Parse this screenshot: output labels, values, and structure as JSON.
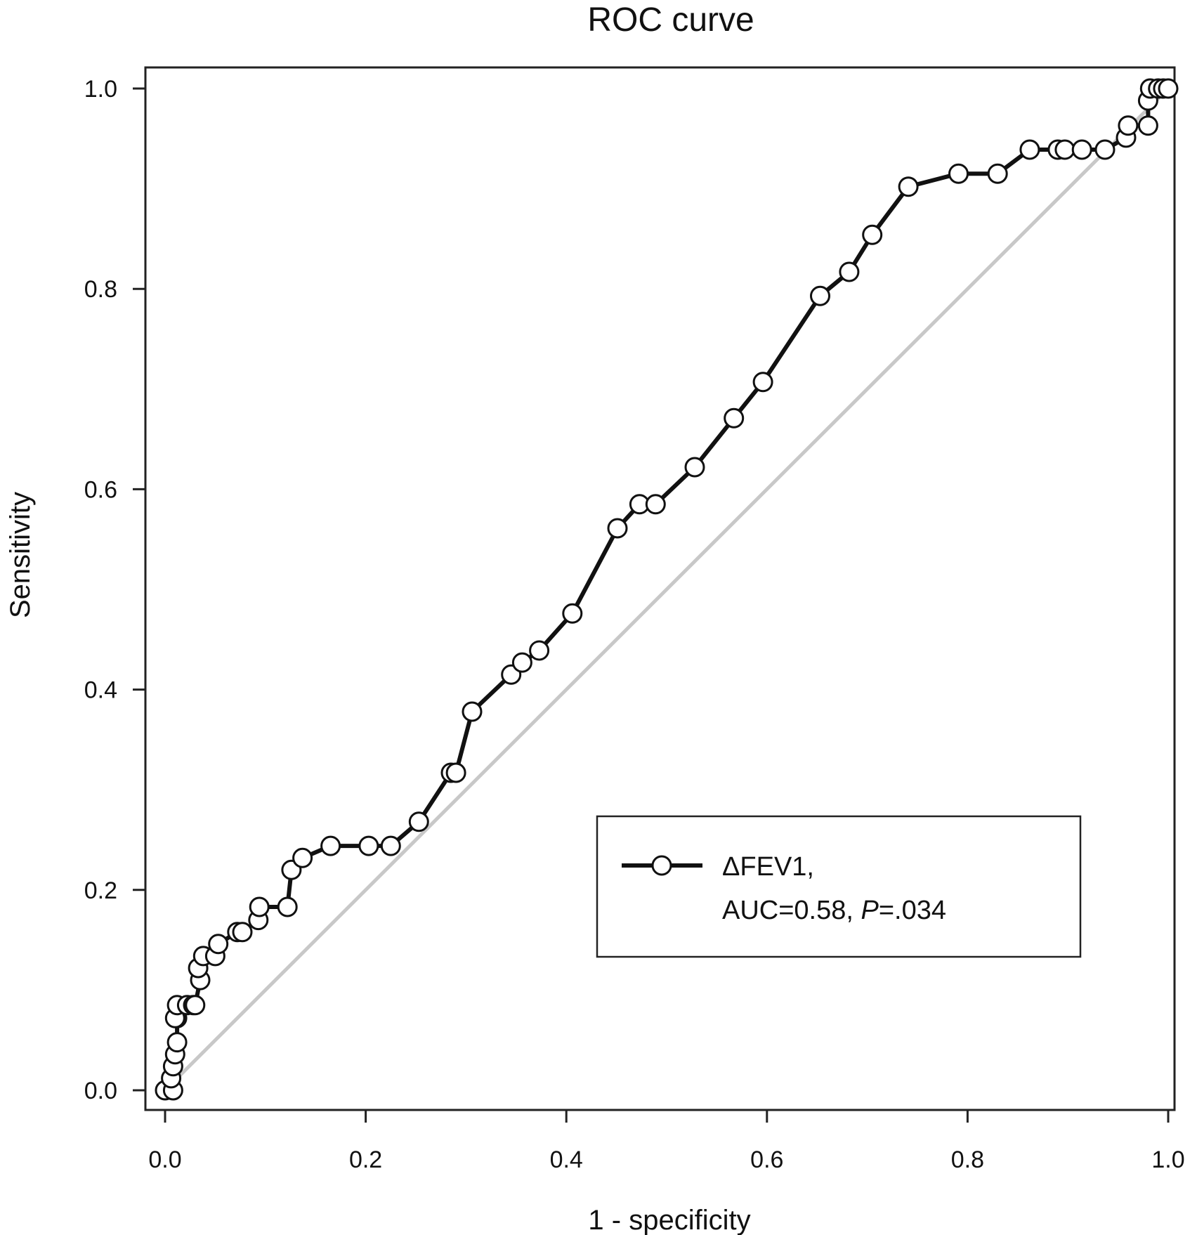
{
  "chart_data": {
    "type": "line",
    "title": "ROC curve",
    "xlabel": "1 - specificity",
    "ylabel": "Sensitivity",
    "xlim": [
      0,
      1
    ],
    "ylim": [
      0,
      1
    ],
    "x_ticks": [
      "0.0",
      "0.2",
      "0.4",
      "0.6",
      "0.8",
      "1.0"
    ],
    "y_ticks": [
      "0.0",
      "0.2",
      "0.4",
      "0.6",
      "0.8",
      "1.0"
    ],
    "grid": false,
    "legend_position": "bottom-right",
    "legend": {
      "line1": "ΔFEV1,",
      "line2_prefix": "AUC=0.58, ",
      "line2_p": "P",
      "line2_suffix": "=.034"
    },
    "colors": {
      "curve": "#111111",
      "marker_fill": "#ffffff",
      "reference_line": "#c8c8c8"
    },
    "reference_line": {
      "x": [
        0,
        1
      ],
      "y": [
        0,
        1
      ]
    },
    "series": [
      {
        "name": "ΔFEV1",
        "marker": "open-circle",
        "x": [
          0.0,
          0.008,
          0.006,
          0.008,
          0.01,
          0.012,
          0.012,
          0.01,
          0.012,
          0.022,
          0.028,
          0.03,
          0.035,
          0.033,
          0.038,
          0.05,
          0.053,
          0.072,
          0.077,
          0.093,
          0.094,
          0.122,
          0.126,
          0.137,
          0.165,
          0.203,
          0.225,
          0.253,
          0.285,
          0.29,
          0.306,
          0.345,
          0.356,
          0.373,
          0.406,
          0.451,
          0.473,
          0.489,
          0.528,
          0.567,
          0.596,
          0.653,
          0.682,
          0.705,
          0.741,
          0.791,
          0.83,
          0.862,
          0.89,
          0.897,
          0.914,
          0.937,
          0.958,
          0.96,
          0.98,
          0.98,
          0.982,
          0.99,
          0.995,
          1.0
        ],
        "y": [
          0.0,
          0.0,
          0.012,
          0.024,
          0.036,
          0.048,
          0.072,
          0.072,
          0.085,
          0.085,
          0.085,
          0.085,
          0.11,
          0.122,
          0.134,
          0.134,
          0.146,
          0.158,
          0.158,
          0.17,
          0.183,
          0.183,
          0.22,
          0.232,
          0.244,
          0.244,
          0.244,
          0.268,
          0.317,
          0.317,
          0.378,
          0.415,
          0.427,
          0.439,
          0.476,
          0.561,
          0.585,
          0.585,
          0.622,
          0.671,
          0.707,
          0.793,
          0.817,
          0.854,
          0.902,
          0.915,
          0.915,
          0.939,
          0.939,
          0.939,
          0.939,
          0.939,
          0.951,
          0.963,
          0.963,
          0.988,
          1.0,
          1.0,
          1.0,
          1.0
        ]
      }
    ]
  }
}
